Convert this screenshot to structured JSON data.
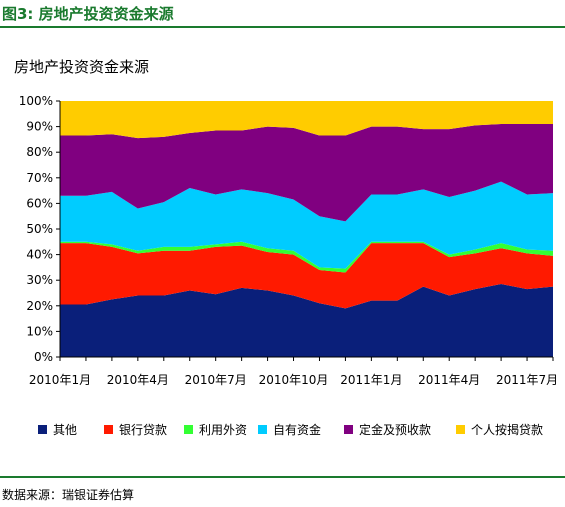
{
  "figure_label": "图3: 房地产投资资金来源",
  "source_note": "数据来源：瑞银证券估算",
  "chart_data": {
    "type": "area",
    "stacked": true,
    "title": "房地产投资资金来源",
    "ylim": [
      0,
      100
    ],
    "y_ticks": [
      "0%",
      "10%",
      "20%",
      "30%",
      "40%",
      "50%",
      "60%",
      "70%",
      "80%",
      "90%",
      "100%"
    ],
    "x_tick_labels": [
      "2010年1月",
      "2010年4月",
      "2010年7月",
      "2010年10月",
      "2011年1月",
      "2011年4月",
      "2011年7月"
    ],
    "x": [
      "2010-01",
      "2010-02",
      "2010-03",
      "2010-04",
      "2010-05",
      "2010-06",
      "2010-07",
      "2010-08",
      "2010-09",
      "2010-10",
      "2010-11",
      "2010-12",
      "2011-01",
      "2011-02",
      "2011-03",
      "2011-04",
      "2011-05",
      "2011-06",
      "2011-07",
      "2011-08"
    ],
    "series": [
      {
        "name": "其他",
        "color": "#0a1f7a",
        "values": [
          20.5,
          20.5,
          22.5,
          24,
          24,
          26,
          24.5,
          27,
          26,
          24,
          21,
          19,
          22,
          22,
          27.5,
          24,
          26.5,
          28.5,
          26.5,
          27.5
        ]
      },
      {
        "name": "银行贷款",
        "color": "#ff1a00",
        "values": [
          24,
          24,
          20.5,
          16.5,
          17.5,
          15.5,
          18.5,
          16.5,
          15,
          16,
          13,
          14,
          22.5,
          22.5,
          17,
          15,
          14,
          14,
          14,
          12
        ]
      },
      {
        "name": "利用外资",
        "color": "#33ff33",
        "values": [
          0.5,
          0.5,
          1,
          1,
          1.5,
          1.5,
          1,
          1.5,
          1.5,
          1.5,
          1,
          1.5,
          0.5,
          0.5,
          0.5,
          1,
          1.5,
          2,
          1.5,
          2
        ]
      },
      {
        "name": "自有资金",
        "color": "#00ccff",
        "values": [
          18,
          18,
          20.5,
          16.5,
          17.5,
          23,
          19.5,
          20.5,
          21.5,
          20,
          20,
          18.5,
          18.5,
          18.5,
          20.5,
          22.5,
          23,
          24,
          21.5,
          22.5
        ]
      },
      {
        "name": "定金及预收款",
        "color": "#800080",
        "values": [
          23.5,
          23.5,
          22.5,
          27.5,
          25.5,
          21.5,
          25,
          23,
          26,
          28,
          31.5,
          33.5,
          26.5,
          26.5,
          23.5,
          26.5,
          25.5,
          22.5,
          27.5,
          27
        ]
      },
      {
        "name": "个人按揭贷款",
        "color": "#ffcc00",
        "values": [
          13.5,
          13.5,
          13,
          14.5,
          14,
          12.5,
          11.5,
          11.5,
          10,
          10.5,
          13.5,
          13.5,
          10,
          10,
          11,
          11,
          9.5,
          9,
          9,
          9
        ]
      }
    ],
    "legend_position": "bottom",
    "grid": false
  }
}
